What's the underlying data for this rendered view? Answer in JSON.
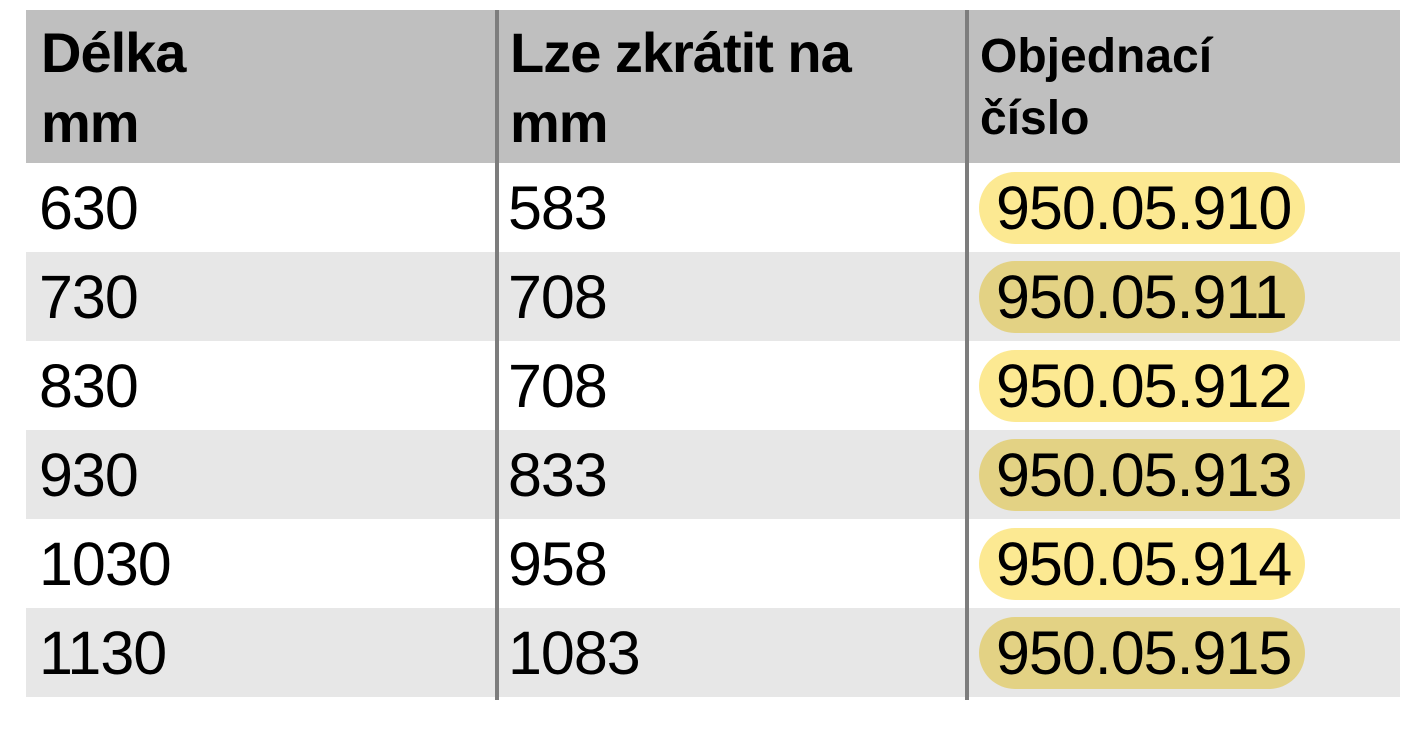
{
  "table": {
    "header": {
      "col1": {
        "line1": "Délka",
        "line2": "mm"
      },
      "col2": {
        "line1": "Lze zkrátit na",
        "line2": "mm"
      },
      "col3": {
        "line1": "Objednací",
        "line2": "číslo"
      }
    },
    "rows": [
      {
        "length_mm": "630",
        "shorten_to_mm": "583",
        "order_number": "950.05.910"
      },
      {
        "length_mm": "730",
        "shorten_to_mm": "708",
        "order_number": "950.05.911"
      },
      {
        "length_mm": "830",
        "shorten_to_mm": "708",
        "order_number": "950.05.912"
      },
      {
        "length_mm": "930",
        "shorten_to_mm": "833",
        "order_number": "950.05.913"
      },
      {
        "length_mm": "1030",
        "shorten_to_mm": "958",
        "order_number": "950.05.914"
      },
      {
        "length_mm": "1130",
        "shorten_to_mm": "1083",
        "order_number": "950.05.915"
      }
    ]
  },
  "chart_data": {
    "type": "table",
    "columns": [
      "Délka mm",
      "Lze zkrátit na mm",
      "Objednací číslo"
    ],
    "rows": [
      [
        "630",
        "583",
        "950.05.910"
      ],
      [
        "730",
        "708",
        "950.05.911"
      ],
      [
        "830",
        "708",
        "950.05.912"
      ],
      [
        "930",
        "833",
        "950.05.913"
      ],
      [
        "1030",
        "958",
        "950.05.914"
      ],
      [
        "1130",
        "1083",
        "950.05.915"
      ]
    ]
  },
  "colors": {
    "header_bg": "#bfbfbf",
    "row_stripe_bg": "#e7e7e7",
    "row_white_bg": "#ffffff",
    "column_divider": "#7d7d7d",
    "highlight_on_white": "#fce992",
    "highlight_on_stripe": "#e3d284",
    "text": "#000000"
  }
}
